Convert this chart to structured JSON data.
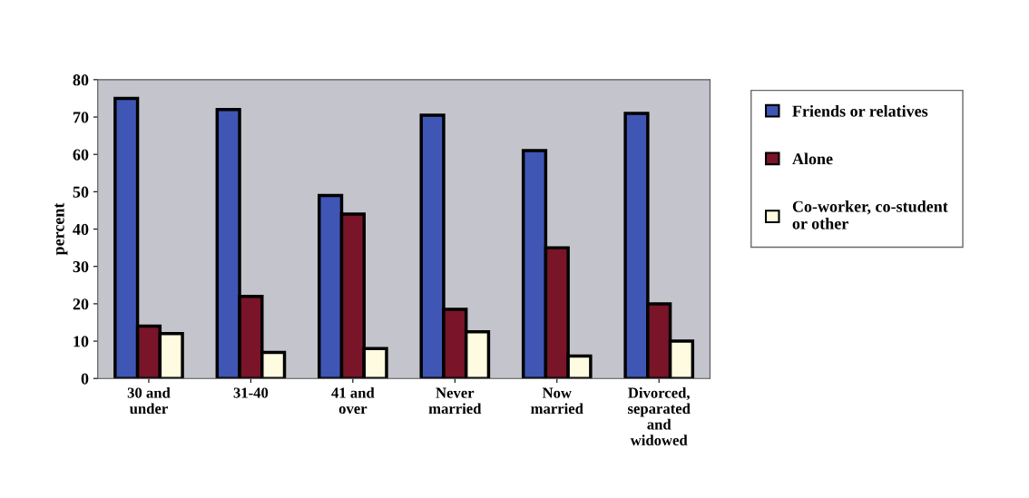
{
  "chart_data": {
    "type": "bar",
    "ylabel": "percent",
    "categories": [
      "30 and\nunder",
      "31-40",
      "41 and\nover",
      "Never\nmarried",
      "Now\nmarried",
      "Divorced,\nseparated\nand\nwidowed"
    ],
    "series": [
      {
        "name": "Friends or relatives",
        "color": "#3f56b4",
        "values": [
          75,
          72,
          49,
          70.5,
          61,
          71
        ]
      },
      {
        "name": "Alone",
        "color": "#7a1428",
        "values": [
          14,
          22,
          44,
          18.5,
          35,
          20
        ]
      },
      {
        "name": "Co-worker, co-student\nor other",
        "color": "#fffbe0",
        "values": [
          12,
          7,
          8,
          12.5,
          6,
          10
        ]
      }
    ],
    "ylim": [
      0,
      80
    ],
    "yticks": [
      0,
      10,
      20,
      30,
      40,
      50,
      60,
      70,
      80
    ],
    "grid": false,
    "legend": "right"
  }
}
